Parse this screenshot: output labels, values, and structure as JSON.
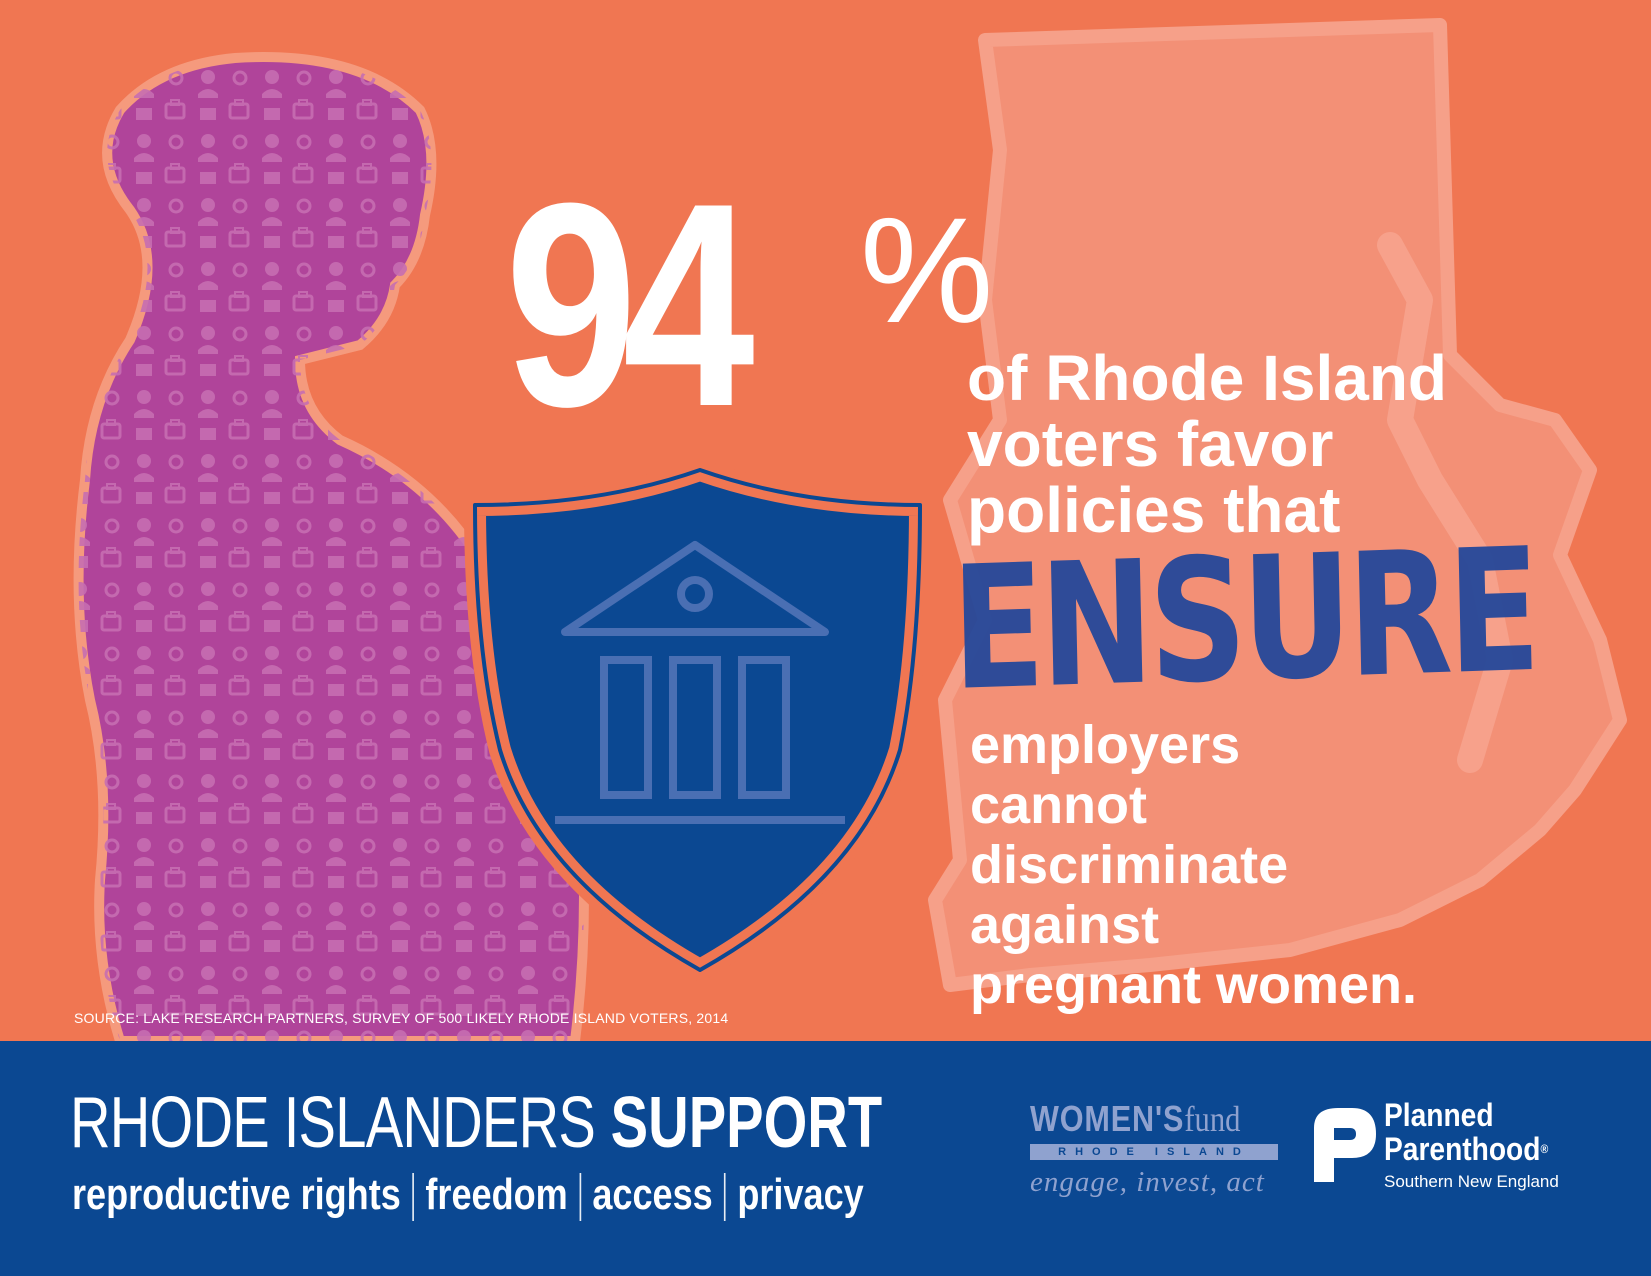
{
  "stat": {
    "number": "94",
    "percent_sign": "%",
    "lines_top": [
      "of Rhode Island",
      "voters favor",
      "policies that"
    ],
    "emphasis": "ENSURE",
    "lines_bottom": [
      "employers",
      "cannot",
      "discriminate",
      "against",
      "pregnant women."
    ]
  },
  "source": "SOURCE: LAKE RESEARCH PARTNERS, SURVEY OF 500 LIKELY RHODE ISLAND VOTERS, 2014",
  "footer": {
    "headline_light": "RHODE ISLANDERS",
    "headline_bold": "SUPPORT",
    "pillars": [
      "reproductive rights",
      "freedom",
      "access",
      "privacy"
    ]
  },
  "logos": {
    "womens_fund": {
      "name_a": "WOMEN'S",
      "name_b": "fund",
      "state": "RHODE ISLAND",
      "tagline": "engage, invest, act"
    },
    "planned_parenthood": {
      "line1": "Planned",
      "line2": "Parenthood",
      "registered": "®",
      "region": "Southern New England"
    }
  },
  "icons": [
    "pregnant-woman-silhouette",
    "rhode-island-map-outline",
    "shield-icon",
    "bank-building-icon",
    "planned-parenthood-p-icon"
  ],
  "colors": {
    "background": "#f07652",
    "silhouette": "#b0449a",
    "shield": "#0b4892",
    "footer": "#0b4892",
    "ensure_text": "#25489a",
    "womens_fund": "#8fa2cf"
  }
}
